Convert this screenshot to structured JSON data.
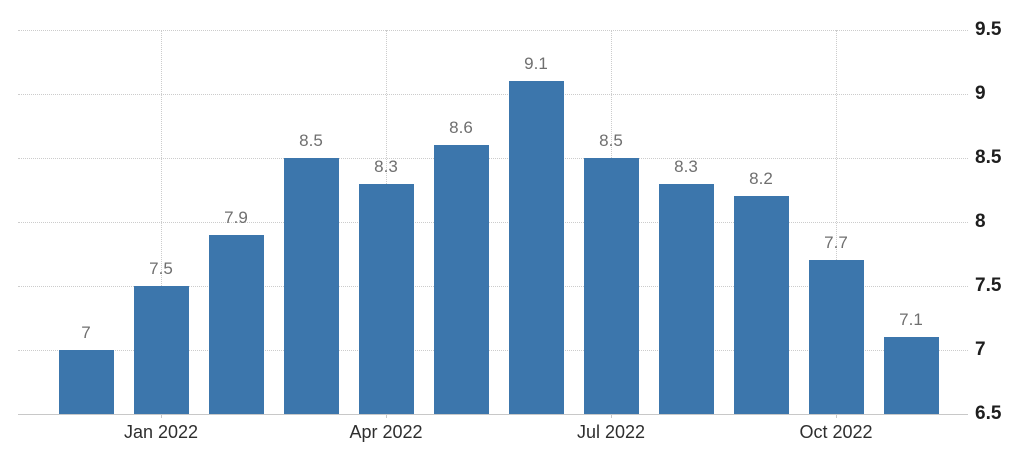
{
  "chart_data": {
    "type": "bar",
    "title": "",
    "xlabel": "",
    "ylabel": "",
    "values": [
      7,
      7.5,
      7.9,
      8.5,
      8.3,
      8.6,
      9.1,
      8.5,
      8.3,
      8.2,
      7.7,
      7.1
    ],
    "bar_value_labels": [
      "7",
      "7.5",
      "7.9",
      "8.5",
      "8.3",
      "8.6",
      "9.1",
      "8.5",
      "8.3",
      "8.2",
      "7.7",
      "7.1"
    ],
    "x_ticks": [
      {
        "label": "Jan 2022",
        "bar_index": 1
      },
      {
        "label": "Apr 2022",
        "bar_index": 4
      },
      {
        "label": "Jul 2022",
        "bar_index": 7
      },
      {
        "label": "Oct 2022",
        "bar_index": 10
      }
    ],
    "y_ticks": [
      6.5,
      7,
      7.5,
      8,
      8.5,
      9,
      9.5
    ],
    "y_tick_labels": [
      "6.5",
      "7",
      "7.5",
      "8",
      "8.5",
      "9",
      "9.5"
    ],
    "ylim": [
      6.5,
      9.5
    ],
    "grid": "dotted",
    "legend": "none",
    "y_axis_position": "right",
    "colors": {
      "bar": "#3c76ac",
      "value_label": "#6f6f6f",
      "x_tick_label": "#2e2e2e",
      "y_tick_label": "#1e1e1e",
      "gridline": "#cccccc",
      "baseline": "#c8c8c8",
      "background": "#ffffff"
    }
  }
}
